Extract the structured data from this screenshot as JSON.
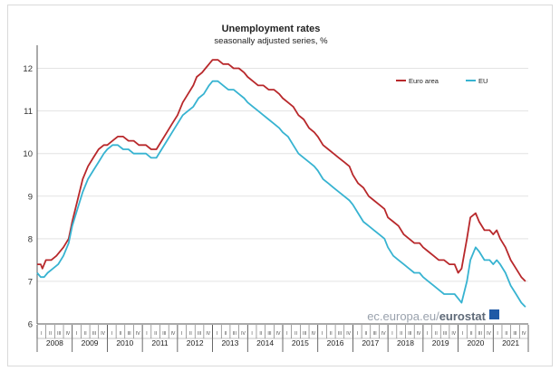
{
  "chart_data": {
    "type": "line",
    "title": "Unemployment rates",
    "subtitle": "seasonally adjusted series, %",
    "xlabel": "",
    "ylabel": "",
    "ylim": [
      6,
      12.5
    ],
    "yticks": [
      6,
      7,
      8,
      9,
      10,
      11,
      12
    ],
    "years": [
      "2008",
      "2009",
      "2010",
      "2011",
      "2012",
      "2013",
      "2014",
      "2015",
      "2016",
      "2017",
      "2018",
      "2019",
      "2020",
      "2021"
    ],
    "quarters": [
      "I",
      "II",
      "III",
      "IV"
    ],
    "legend_position": "top-right",
    "grid": true,
    "series": [
      {
        "name": "Euro area",
        "color": "#b8282b",
        "points": [
          [
            2008.0,
            7.4
          ],
          [
            2008.1,
            7.4
          ],
          [
            2008.15,
            7.3
          ],
          [
            2008.25,
            7.5
          ],
          [
            2008.4,
            7.5
          ],
          [
            2008.55,
            7.6
          ],
          [
            2008.75,
            7.8
          ],
          [
            2008.9,
            8.0
          ],
          [
            2009.0,
            8.4
          ],
          [
            2009.15,
            8.9
          ],
          [
            2009.3,
            9.4
          ],
          [
            2009.45,
            9.7
          ],
          [
            2009.6,
            9.9
          ],
          [
            2009.75,
            10.1
          ],
          [
            2009.9,
            10.2
          ],
          [
            2010.0,
            10.2
          ],
          [
            2010.15,
            10.3
          ],
          [
            2010.3,
            10.4
          ],
          [
            2010.45,
            10.4
          ],
          [
            2010.6,
            10.3
          ],
          [
            2010.75,
            10.3
          ],
          [
            2010.9,
            10.2
          ],
          [
            2011.0,
            10.2
          ],
          [
            2011.1,
            10.2
          ],
          [
            2011.25,
            10.1
          ],
          [
            2011.4,
            10.1
          ],
          [
            2011.55,
            10.3
          ],
          [
            2011.7,
            10.5
          ],
          [
            2011.85,
            10.7
          ],
          [
            2012.0,
            10.9
          ],
          [
            2012.15,
            11.2
          ],
          [
            2012.3,
            11.4
          ],
          [
            2012.45,
            11.6
          ],
          [
            2012.55,
            11.8
          ],
          [
            2012.7,
            11.9
          ],
          [
            2012.8,
            12.0
          ],
          [
            2012.9,
            12.1
          ],
          [
            2013.0,
            12.2
          ],
          [
            2013.15,
            12.2
          ],
          [
            2013.3,
            12.1
          ],
          [
            2013.45,
            12.1
          ],
          [
            2013.6,
            12.0
          ],
          [
            2013.75,
            12.0
          ],
          [
            2013.9,
            11.9
          ],
          [
            2014.0,
            11.8
          ],
          [
            2014.15,
            11.7
          ],
          [
            2014.3,
            11.6
          ],
          [
            2014.45,
            11.6
          ],
          [
            2014.6,
            11.5
          ],
          [
            2014.75,
            11.5
          ],
          [
            2014.9,
            11.4
          ],
          [
            2015.0,
            11.3
          ],
          [
            2015.15,
            11.2
          ],
          [
            2015.3,
            11.1
          ],
          [
            2015.45,
            10.9
          ],
          [
            2015.6,
            10.8
          ],
          [
            2015.75,
            10.6
          ],
          [
            2015.9,
            10.5
          ],
          [
            2016.0,
            10.4
          ],
          [
            2016.15,
            10.2
          ],
          [
            2016.3,
            10.1
          ],
          [
            2016.45,
            10.0
          ],
          [
            2016.6,
            9.9
          ],
          [
            2016.75,
            9.8
          ],
          [
            2016.9,
            9.7
          ],
          [
            2017.0,
            9.5
          ],
          [
            2017.15,
            9.3
          ],
          [
            2017.3,
            9.2
          ],
          [
            2017.45,
            9.0
          ],
          [
            2017.6,
            8.9
          ],
          [
            2017.75,
            8.8
          ],
          [
            2017.9,
            8.7
          ],
          [
            2018.0,
            8.5
          ],
          [
            2018.15,
            8.4
          ],
          [
            2018.3,
            8.3
          ],
          [
            2018.45,
            8.1
          ],
          [
            2018.6,
            8.0
          ],
          [
            2018.75,
            7.9
          ],
          [
            2018.9,
            7.9
          ],
          [
            2019.0,
            7.8
          ],
          [
            2019.15,
            7.7
          ],
          [
            2019.3,
            7.6
          ],
          [
            2019.45,
            7.5
          ],
          [
            2019.6,
            7.5
          ],
          [
            2019.75,
            7.4
          ],
          [
            2019.9,
            7.4
          ],
          [
            2020.0,
            7.2
          ],
          [
            2020.1,
            7.3
          ],
          [
            2020.25,
            8.0
          ],
          [
            2020.35,
            8.5
          ],
          [
            2020.5,
            8.6
          ],
          [
            2020.6,
            8.4
          ],
          [
            2020.75,
            8.2
          ],
          [
            2020.9,
            8.2
          ],
          [
            2021.0,
            8.1
          ],
          [
            2021.1,
            8.2
          ],
          [
            2021.2,
            8.0
          ],
          [
            2021.35,
            7.8
          ],
          [
            2021.5,
            7.5
          ],
          [
            2021.65,
            7.3
          ],
          [
            2021.8,
            7.1
          ],
          [
            2021.92,
            7.0
          ]
        ]
      },
      {
        "name": "EU",
        "color": "#37b3d1",
        "points": [
          [
            2008.0,
            7.2
          ],
          [
            2008.1,
            7.1
          ],
          [
            2008.2,
            7.1
          ],
          [
            2008.3,
            7.2
          ],
          [
            2008.45,
            7.3
          ],
          [
            2008.6,
            7.4
          ],
          [
            2008.75,
            7.6
          ],
          [
            2008.9,
            7.9
          ],
          [
            2009.0,
            8.3
          ],
          [
            2009.15,
            8.7
          ],
          [
            2009.3,
            9.1
          ],
          [
            2009.45,
            9.4
          ],
          [
            2009.6,
            9.6
          ],
          [
            2009.75,
            9.8
          ],
          [
            2009.9,
            10.0
          ],
          [
            2010.0,
            10.1
          ],
          [
            2010.15,
            10.2
          ],
          [
            2010.3,
            10.2
          ],
          [
            2010.45,
            10.1
          ],
          [
            2010.6,
            10.1
          ],
          [
            2010.75,
            10.0
          ],
          [
            2010.9,
            10.0
          ],
          [
            2011.0,
            10.0
          ],
          [
            2011.1,
            10.0
          ],
          [
            2011.25,
            9.9
          ],
          [
            2011.4,
            9.9
          ],
          [
            2011.55,
            10.1
          ],
          [
            2011.7,
            10.3
          ],
          [
            2011.85,
            10.5
          ],
          [
            2012.0,
            10.7
          ],
          [
            2012.15,
            10.9
          ],
          [
            2012.3,
            11.0
          ],
          [
            2012.45,
            11.1
          ],
          [
            2012.6,
            11.3
          ],
          [
            2012.75,
            11.4
          ],
          [
            2012.9,
            11.6
          ],
          [
            2013.0,
            11.7
          ],
          [
            2013.15,
            11.7
          ],
          [
            2013.3,
            11.6
          ],
          [
            2013.45,
            11.5
          ],
          [
            2013.6,
            11.5
          ],
          [
            2013.75,
            11.4
          ],
          [
            2013.9,
            11.3
          ],
          [
            2014.0,
            11.2
          ],
          [
            2014.15,
            11.1
          ],
          [
            2014.3,
            11.0
          ],
          [
            2014.45,
            10.9
          ],
          [
            2014.6,
            10.8
          ],
          [
            2014.75,
            10.7
          ],
          [
            2014.9,
            10.6
          ],
          [
            2015.0,
            10.5
          ],
          [
            2015.15,
            10.4
          ],
          [
            2015.3,
            10.2
          ],
          [
            2015.45,
            10.0
          ],
          [
            2015.6,
            9.9
          ],
          [
            2015.75,
            9.8
          ],
          [
            2015.9,
            9.7
          ],
          [
            2016.0,
            9.6
          ],
          [
            2016.15,
            9.4
          ],
          [
            2016.3,
            9.3
          ],
          [
            2016.45,
            9.2
          ],
          [
            2016.6,
            9.1
          ],
          [
            2016.75,
            9.0
          ],
          [
            2016.9,
            8.9
          ],
          [
            2017.0,
            8.8
          ],
          [
            2017.15,
            8.6
          ],
          [
            2017.3,
            8.4
          ],
          [
            2017.45,
            8.3
          ],
          [
            2017.6,
            8.2
          ],
          [
            2017.75,
            8.1
          ],
          [
            2017.9,
            8.0
          ],
          [
            2018.0,
            7.8
          ],
          [
            2018.15,
            7.6
          ],
          [
            2018.3,
            7.5
          ],
          [
            2018.45,
            7.4
          ],
          [
            2018.6,
            7.3
          ],
          [
            2018.75,
            7.2
          ],
          [
            2018.9,
            7.2
          ],
          [
            2019.0,
            7.1
          ],
          [
            2019.15,
            7.0
          ],
          [
            2019.3,
            6.9
          ],
          [
            2019.45,
            6.8
          ],
          [
            2019.6,
            6.7
          ],
          [
            2019.75,
            6.7
          ],
          [
            2019.9,
            6.7
          ],
          [
            2020.0,
            6.6
          ],
          [
            2020.1,
            6.5
          ],
          [
            2020.25,
            7.0
          ],
          [
            2020.35,
            7.5
          ],
          [
            2020.5,
            7.8
          ],
          [
            2020.6,
            7.7
          ],
          [
            2020.75,
            7.5
          ],
          [
            2020.9,
            7.5
          ],
          [
            2021.0,
            7.4
          ],
          [
            2021.1,
            7.5
          ],
          [
            2021.2,
            7.4
          ],
          [
            2021.35,
            7.2
          ],
          [
            2021.5,
            6.9
          ],
          [
            2021.65,
            6.7
          ],
          [
            2021.8,
            6.5
          ],
          [
            2021.92,
            6.4
          ]
        ]
      }
    ]
  },
  "watermark": {
    "prefix": "ec.europa.eu/",
    "brand": "eurostat",
    "badge_color": "#1f5aa6"
  }
}
